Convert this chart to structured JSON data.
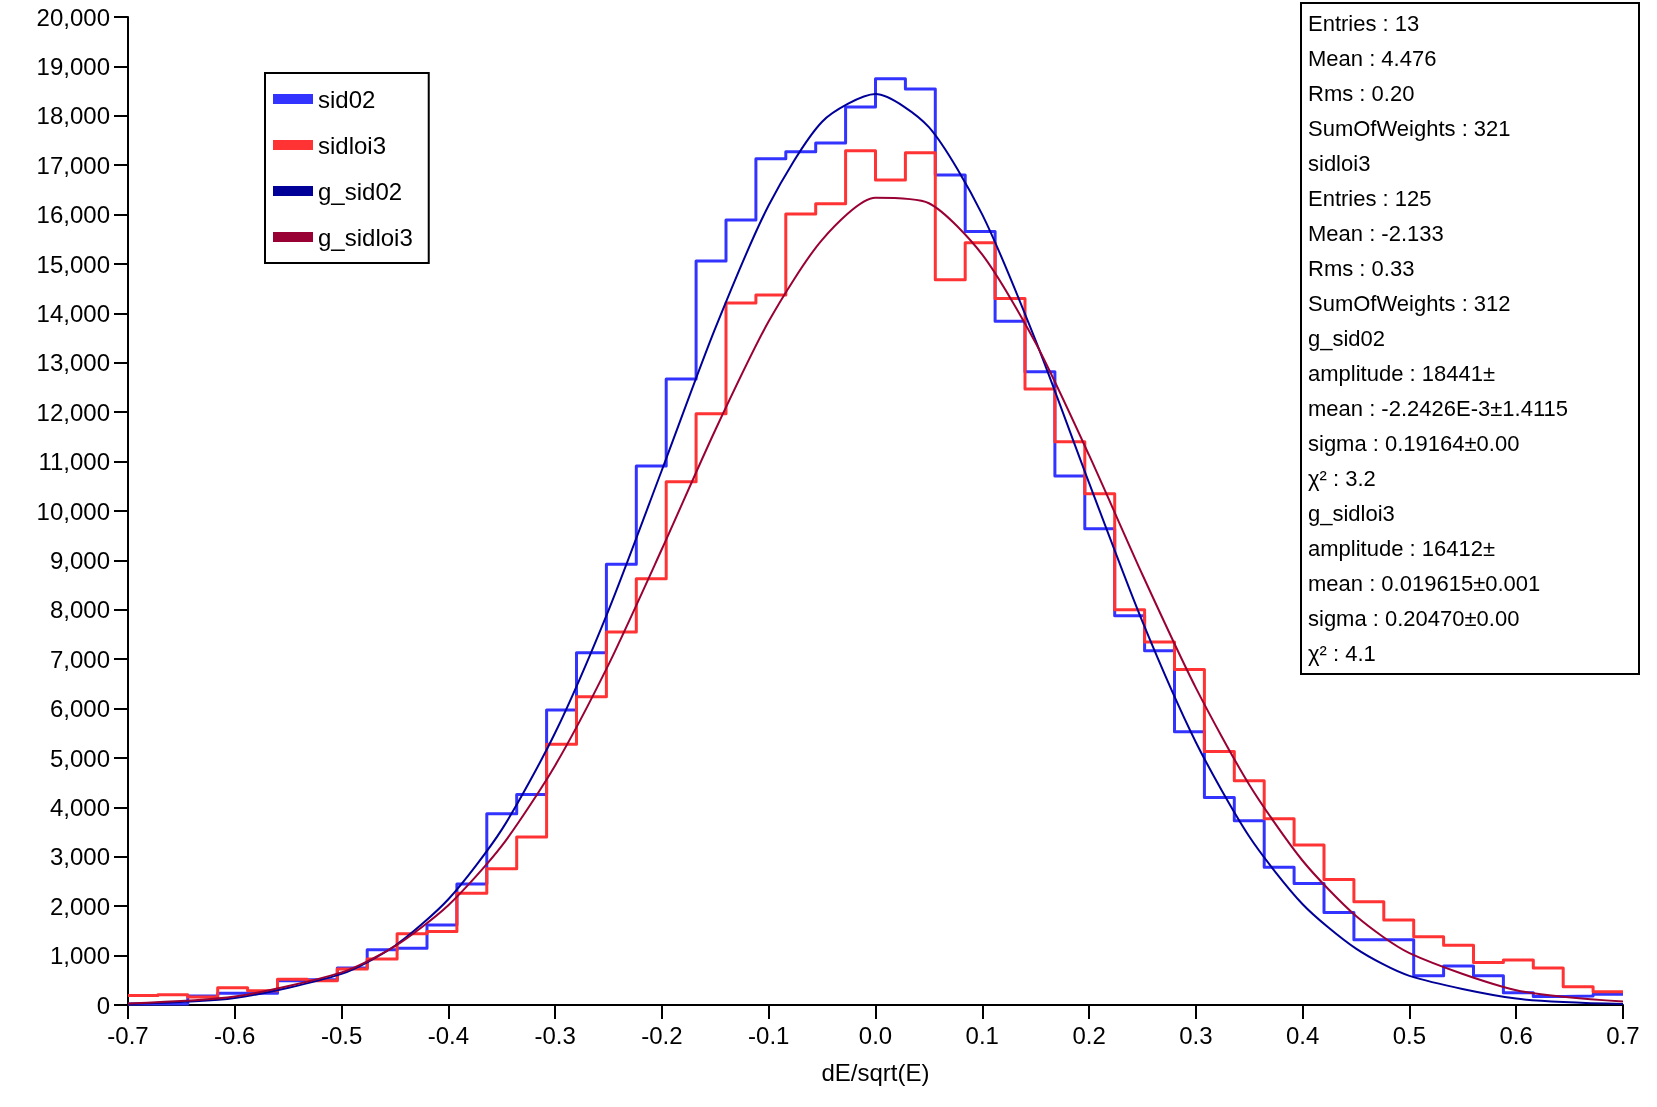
{
  "chart_data": {
    "type": "histogram",
    "xlabel": "dE/sqrt(E)",
    "bins": [
      -0.7,
      -0.672,
      -0.644,
      -0.616,
      -0.588,
      -0.56,
      -0.532,
      -0.504,
      -0.476,
      -0.448,
      -0.42,
      -0.392,
      -0.364,
      -0.336,
      -0.308,
      -0.28,
      -0.252,
      -0.224,
      -0.196,
      -0.168,
      -0.14,
      -0.112,
      -0.084,
      -0.056,
      -0.028,
      0,
      0.028,
      0.056,
      0.084,
      0.112,
      0.14,
      0.168,
      0.196,
      0.224,
      0.252,
      0.28,
      0.308,
      0.336,
      0.364,
      0.392,
      0.42,
      0.448,
      0.476,
      0.504,
      0.532,
      0.56,
      0.588,
      0.616,
      0.644,
      0.672,
      0.7
    ],
    "series": [
      {
        "name": "sid02",
        "color": "#3333ff",
        "values": [
          20,
          20,
          180,
          240,
          240,
          490,
          510,
          750,
          1120,
          1150,
          1620,
          2450,
          3870,
          4260,
          5970,
          7130,
          8920,
          10910,
          12670,
          15060,
          15890,
          17130,
          17270,
          17450,
          18180,
          18750,
          18540,
          16800,
          15660,
          13840,
          12820,
          10710,
          9640,
          7880,
          7170,
          5530,
          4200,
          3730,
          2790,
          2460,
          1870,
          1320,
          1320,
          590,
          790,
          590,
          250,
          170,
          180,
          220
        ]
      },
      {
        "name": "sidloi3",
        "color": "#ff3333",
        "values": [
          190,
          210,
          160,
          350,
          290,
          520,
          490,
          730,
          930,
          1440,
          1490,
          2260,
          2760,
          3400,
          5280,
          6240,
          7550,
          8630,
          10590,
          11970,
          14210,
          14370,
          16010,
          16220,
          17290,
          16700,
          17250,
          14680,
          15430,
          14300,
          12470,
          11400,
          10350,
          8000,
          7350,
          6790,
          5130,
          4540,
          3770,
          3240,
          2540,
          2090,
          1720,
          1380,
          1210,
          860,
          910,
          750,
          370,
          270
        ]
      },
      {
        "name": "g_sid02",
        "color": "#000099",
        "type": "line",
        "x": [
          -0.7,
          -0.6,
          -0.5,
          -0.45,
          -0.4,
          -0.35,
          -0.3,
          -0.25,
          -0.2,
          -0.15,
          -0.1,
          -0.05,
          0,
          0.05,
          0.1,
          0.15,
          0.2,
          0.25,
          0.3,
          0.35,
          0.4,
          0.45,
          0.5,
          0.6,
          0.7
        ],
        "values": [
          20,
          140,
          630,
          1200,
          2140,
          3550,
          5510,
          7990,
          10830,
          13700,
          16190,
          17880,
          18440,
          17770,
          16000,
          13450,
          10570,
          7760,
          5320,
          3410,
          2040,
          1140,
          590,
          130,
          20
        ]
      },
      {
        "name": "g_sidloi3",
        "color": "#990033",
        "type": "line",
        "x": [
          -0.7,
          -0.6,
          -0.5,
          -0.45,
          -0.4,
          -0.35,
          -0.3,
          -0.25,
          -0.2,
          -0.15,
          -0.1,
          -0.05,
          0,
          0.05,
          0.1,
          0.15,
          0.2,
          0.25,
          0.3,
          0.35,
          0.4,
          0.45,
          0.5,
          0.6,
          0.7
        ],
        "values": [
          30,
          170,
          660,
          1190,
          2020,
          3220,
          4850,
          6890,
          9230,
          11640,
          13840,
          15490,
          16340,
          16230,
          15190,
          13400,
          11130,
          8710,
          6420,
          4460,
          2920,
          1800,
          1050,
          300,
          70
        ]
      }
    ],
    "xlim": [
      -0.7,
      0.7
    ],
    "xticks": [
      -0.7,
      -0.6,
      -0.5,
      -0.4,
      -0.3,
      -0.2,
      -0.1,
      {
        "value": 0,
        "label": "0.0"
      },
      0.1,
      0.2,
      0.3,
      0.4,
      0.5,
      0.6,
      0.7
    ],
    "ylim": [
      0,
      20000
    ],
    "yticks": [
      0,
      {
        "value": 1000,
        "label": "1,000"
      },
      {
        "value": 2000,
        "label": "2,000"
      },
      {
        "value": 3000,
        "label": "3,000"
      },
      {
        "value": 4000,
        "label": "4,000"
      },
      {
        "value": 5000,
        "label": "5,000"
      },
      {
        "value": 6000,
        "label": "6,000"
      },
      {
        "value": 7000,
        "label": "7,000"
      },
      {
        "value": 8000,
        "label": "8,000"
      },
      {
        "value": 9000,
        "label": "9,000"
      },
      {
        "value": 10000,
        "label": "10,000"
      },
      {
        "value": 11000,
        "label": "11,000"
      },
      {
        "value": 12000,
        "label": "12,000"
      },
      {
        "value": 13000,
        "label": "13,000"
      },
      {
        "value": 14000,
        "label": "14,000"
      },
      {
        "value": 15000,
        "label": "15,000"
      },
      {
        "value": 16000,
        "label": "16,000"
      },
      {
        "value": 17000,
        "label": "17,000"
      },
      {
        "value": 18000,
        "label": "18,000"
      },
      {
        "value": 19000,
        "label": "19,000"
      },
      {
        "value": 20000,
        "label": "20,000"
      }
    ],
    "grid": false,
    "legend": "top left",
    "marker": "none",
    "annotations": [
      "Entries : 13",
      "Mean : 4.476",
      "Rms : 0.20",
      "SumOfWeights : 321",
      "sidloi3",
      "Entries : 125",
      "Mean : -2.133",
      "Rms : 0.33",
      "SumOfWeights : 312",
      "g_sid02",
      "amplitude : 18441±",
      "mean : -2.2426E-3±1.4115",
      "sigma : 0.19164±0.00",
      "χ² : 3.2",
      "g_sidloi3",
      "amplitude : 16412±",
      "mean : 0.019615±0.001",
      "sigma : 0.20470±0.00",
      "χ² : 4.1"
    ]
  }
}
